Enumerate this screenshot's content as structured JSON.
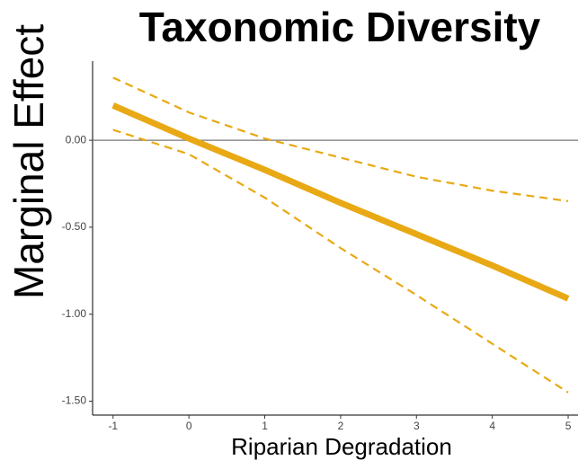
{
  "chart_data": {
    "type": "line",
    "title": "Taxonomic Diversity",
    "x_label": "Riparian Degradation",
    "y_label": "Marginal Effect",
    "x": [
      -1,
      0,
      1,
      2,
      3,
      4,
      5
    ],
    "series": [
      {
        "color": "#e8a915",
        "dash": false,
        "values": [
          0.2,
          0.01,
          -0.17,
          -0.36,
          -0.54,
          -0.72,
          -0.91
        ]
      },
      {
        "color": "#e8a915",
        "dash": true,
        "values": [
          0.36,
          0.16,
          0.01,
          -0.1,
          -0.21,
          -0.29,
          -0.35
        ]
      },
      {
        "color": "#e8a915",
        "dash": true,
        "values": [
          0.06,
          -0.08,
          -0.33,
          -0.62,
          -0.89,
          -1.17,
          -1.45
        ]
      }
    ],
    "xlim": [
      -1.27,
      5.13
    ],
    "ylim": [
      -1.58,
      0.455
    ],
    "xticks": [
      -1,
      0,
      1,
      2,
      3,
      4,
      5
    ],
    "yticks": [
      {
        "value": 0,
        "label": "0.00"
      },
      {
        "value": -0.5,
        "label": "-0.50"
      },
      {
        "value": -1,
        "label": "-1.00"
      },
      {
        "value": -1.5,
        "label": "-1.50"
      }
    ],
    "reference_line": 0
  }
}
